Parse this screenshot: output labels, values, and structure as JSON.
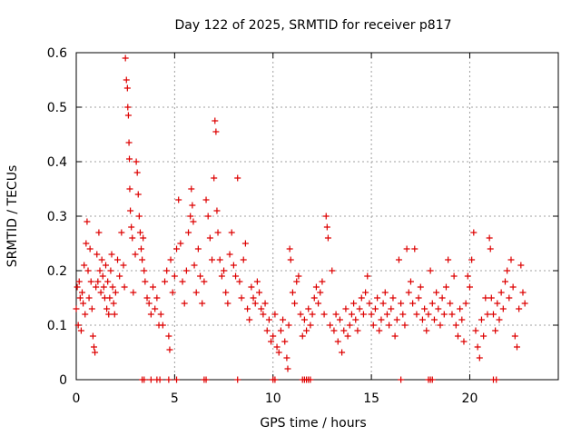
{
  "chart_data": {
    "type": "scatter",
    "title": "Day 122 of 2025, SRMTID for receiver p817",
    "xlabel": "GPS time / hours",
    "ylabel": "SRMTID / TECUs",
    "xlim": [
      0,
      24.5
    ],
    "ylim": [
      0,
      0.6
    ],
    "xticks": [
      "0",
      "5",
      "10",
      "15",
      "20"
    ],
    "xtick_values": [
      0,
      5,
      10,
      15,
      20
    ],
    "yticks": [
      "0",
      "0.1",
      "0.2",
      "0.3",
      "0.4",
      "0.5",
      "0.6"
    ],
    "ytick_values": [
      0,
      0.1,
      0.2,
      0.3,
      0.4,
      0.5,
      0.6
    ],
    "grid": true,
    "marker": "+",
    "color": "#dd0000",
    "series": [
      {
        "name": "p817",
        "points": [
          [
            0.0,
            0.13
          ],
          [
            0.05,
            0.17
          ],
          [
            0.1,
            0.1
          ],
          [
            0.15,
            0.18
          ],
          [
            0.2,
            0.15
          ],
          [
            0.25,
            0.09
          ],
          [
            0.3,
            0.16
          ],
          [
            0.35,
            0.14
          ],
          [
            0.4,
            0.21
          ],
          [
            0.45,
            0.12
          ],
          [
            0.5,
            0.25
          ],
          [
            0.55,
            0.29
          ],
          [
            0.6,
            0.2
          ],
          [
            0.65,
            0.15
          ],
          [
            0.7,
            0.24
          ],
          [
            0.75,
            0.18
          ],
          [
            0.8,
            0.13
          ],
          [
            0.85,
            0.08
          ],
          [
            0.9,
            0.06
          ],
          [
            0.95,
            0.05
          ],
          [
            1.0,
            0.17
          ],
          [
            1.05,
            0.23
          ],
          [
            1.1,
            0.18
          ],
          [
            1.15,
            0.27
          ],
          [
            1.2,
            0.2
          ],
          [
            1.25,
            0.16
          ],
          [
            1.3,
            0.22
          ],
          [
            1.35,
            0.19
          ],
          [
            1.4,
            0.17
          ],
          [
            1.45,
            0.15
          ],
          [
            1.5,
            0.21
          ],
          [
            1.55,
            0.13
          ],
          [
            1.6,
            0.18
          ],
          [
            1.65,
            0.12
          ],
          [
            1.7,
            0.15
          ],
          [
            1.75,
            0.2
          ],
          [
            1.8,
            0.23
          ],
          [
            1.85,
            0.17
          ],
          [
            1.9,
            0.14
          ],
          [
            1.95,
            0.12
          ],
          [
            2.0,
            0.16
          ],
          [
            2.1,
            0.22
          ],
          [
            2.2,
            0.19
          ],
          [
            2.3,
            0.27
          ],
          [
            2.4,
            0.21
          ],
          [
            2.45,
            0.17
          ],
          [
            2.5,
            0.59
          ],
          [
            2.55,
            0.55
          ],
          [
            2.6,
            0.535
          ],
          [
            2.62,
            0.5
          ],
          [
            2.65,
            0.485
          ],
          [
            2.68,
            0.435
          ],
          [
            2.7,
            0.405
          ],
          [
            2.72,
            0.35
          ],
          [
            2.75,
            0.31
          ],
          [
            2.8,
            0.28
          ],
          [
            2.85,
            0.26
          ],
          [
            2.9,
            0.16
          ],
          [
            3.0,
            0.23
          ],
          [
            3.05,
            0.4
          ],
          [
            3.1,
            0.38
          ],
          [
            3.15,
            0.34
          ],
          [
            3.2,
            0.3
          ],
          [
            3.25,
            0.27
          ],
          [
            3.3,
            0.24
          ],
          [
            3.35,
            0.22
          ],
          [
            3.4,
            0.26
          ],
          [
            3.45,
            0.2
          ],
          [
            3.5,
            0.18
          ],
          [
            3.6,
            0.15
          ],
          [
            3.7,
            0.14
          ],
          [
            3.8,
            0.12
          ],
          [
            3.9,
            0.17
          ],
          [
            4.0,
            0.13
          ],
          [
            4.1,
            0.15
          ],
          [
            4.2,
            0.1
          ],
          [
            4.3,
            0.12
          ],
          [
            4.4,
            0.1
          ],
          [
            4.5,
            0.18
          ],
          [
            4.6,
            0.2
          ],
          [
            4.7,
            0.08
          ],
          [
            4.75,
            0.055
          ],
          [
            4.8,
            0.22
          ],
          [
            4.9,
            0.16
          ],
          [
            5.0,
            0.19
          ],
          [
            5.1,
            0.24
          ],
          [
            5.2,
            0.33
          ],
          [
            5.3,
            0.25
          ],
          [
            5.4,
            0.18
          ],
          [
            5.5,
            0.14
          ],
          [
            5.6,
            0.2
          ],
          [
            5.7,
            0.27
          ],
          [
            5.8,
            0.3
          ],
          [
            5.85,
            0.35
          ],
          [
            5.9,
            0.32
          ],
          [
            5.95,
            0.29
          ],
          [
            6.0,
            0.21
          ],
          [
            6.1,
            0.16
          ],
          [
            6.2,
            0.24
          ],
          [
            6.3,
            0.19
          ],
          [
            6.4,
            0.14
          ],
          [
            6.5,
            0.18
          ],
          [
            6.6,
            0.33
          ],
          [
            6.7,
            0.3
          ],
          [
            6.8,
            0.26
          ],
          [
            6.9,
            0.22
          ],
          [
            7.0,
            0.37
          ],
          [
            7.05,
            0.475
          ],
          [
            7.1,
            0.455
          ],
          [
            7.15,
            0.31
          ],
          [
            7.2,
            0.27
          ],
          [
            7.3,
            0.22
          ],
          [
            7.4,
            0.19
          ],
          [
            7.5,
            0.2
          ],
          [
            7.6,
            0.16
          ],
          [
            7.7,
            0.14
          ],
          [
            7.8,
            0.23
          ],
          [
            7.9,
            0.27
          ],
          [
            8.0,
            0.21
          ],
          [
            8.1,
            0.19
          ],
          [
            8.2,
            0.37
          ],
          [
            8.3,
            0.18
          ],
          [
            8.4,
            0.15
          ],
          [
            8.5,
            0.22
          ],
          [
            8.6,
            0.25
          ],
          [
            8.7,
            0.13
          ],
          [
            8.8,
            0.11
          ],
          [
            8.9,
            0.17
          ],
          [
            9.0,
            0.15
          ],
          [
            9.1,
            0.14
          ],
          [
            9.2,
            0.18
          ],
          [
            9.3,
            0.16
          ],
          [
            9.4,
            0.13
          ],
          [
            9.5,
            0.12
          ],
          [
            9.6,
            0.14
          ],
          [
            9.7,
            0.09
          ],
          [
            9.8,
            0.11
          ],
          [
            9.9,
            0.07
          ],
          [
            10.0,
            0.08
          ],
          [
            10.1,
            0.12
          ],
          [
            10.2,
            0.06
          ],
          [
            10.3,
            0.05
          ],
          [
            10.4,
            0.09
          ],
          [
            10.5,
            0.11
          ],
          [
            10.6,
            0.07
          ],
          [
            10.7,
            0.04
          ],
          [
            10.75,
            0.02
          ],
          [
            10.8,
            0.1
          ],
          [
            10.85,
            0.24
          ],
          [
            10.9,
            0.22
          ],
          [
            11.0,
            0.16
          ],
          [
            11.1,
            0.14
          ],
          [
            11.2,
            0.18
          ],
          [
            11.3,
            0.19
          ],
          [
            11.4,
            0.12
          ],
          [
            11.5,
            0.08
          ],
          [
            11.6,
            0.11
          ],
          [
            11.7,
            0.09
          ],
          [
            11.8,
            0.13
          ],
          [
            11.9,
            0.1
          ],
          [
            12.0,
            0.12
          ],
          [
            12.1,
            0.15
          ],
          [
            12.2,
            0.17
          ],
          [
            12.3,
            0.14
          ],
          [
            12.4,
            0.16
          ],
          [
            12.5,
            0.18
          ],
          [
            12.6,
            0.12
          ],
          [
            12.7,
            0.3
          ],
          [
            12.75,
            0.28
          ],
          [
            12.8,
            0.26
          ],
          [
            12.9,
            0.1
          ],
          [
            13.0,
            0.2
          ],
          [
            13.1,
            0.09
          ],
          [
            13.2,
            0.12
          ],
          [
            13.3,
            0.07
          ],
          [
            13.4,
            0.11
          ],
          [
            13.5,
            0.05
          ],
          [
            13.6,
            0.09
          ],
          [
            13.7,
            0.13
          ],
          [
            13.8,
            0.08
          ],
          [
            13.9,
            0.1
          ],
          [
            14.0,
            0.12
          ],
          [
            14.1,
            0.14
          ],
          [
            14.2,
            0.11
          ],
          [
            14.3,
            0.09
          ],
          [
            14.4,
            0.13
          ],
          [
            14.5,
            0.15
          ],
          [
            14.6,
            0.12
          ],
          [
            14.7,
            0.16
          ],
          [
            14.8,
            0.19
          ],
          [
            14.9,
            0.14
          ],
          [
            15.0,
            0.12
          ],
          [
            15.1,
            0.1
          ],
          [
            15.2,
            0.13
          ],
          [
            15.3,
            0.15
          ],
          [
            15.4,
            0.09
          ],
          [
            15.5,
            0.11
          ],
          [
            15.6,
            0.14
          ],
          [
            15.7,
            0.16
          ],
          [
            15.8,
            0.12
          ],
          [
            15.9,
            0.1
          ],
          [
            16.0,
            0.13
          ],
          [
            16.1,
            0.15
          ],
          [
            16.2,
            0.08
          ],
          [
            16.3,
            0.11
          ],
          [
            16.4,
            0.22
          ],
          [
            16.5,
            0.14
          ],
          [
            16.6,
            0.12
          ],
          [
            16.7,
            0.1
          ],
          [
            16.8,
            0.24
          ],
          [
            16.9,
            0.16
          ],
          [
            17.0,
            0.18
          ],
          [
            17.1,
            0.14
          ],
          [
            17.2,
            0.24
          ],
          [
            17.3,
            0.12
          ],
          [
            17.4,
            0.15
          ],
          [
            17.5,
            0.17
          ],
          [
            17.6,
            0.11
          ],
          [
            17.7,
            0.13
          ],
          [
            17.8,
            0.09
          ],
          [
            17.9,
            0.12
          ],
          [
            18.0,
            0.2
          ],
          [
            18.1,
            0.14
          ],
          [
            18.2,
            0.11
          ],
          [
            18.3,
            0.16
          ],
          [
            18.4,
            0.13
          ],
          [
            18.5,
            0.1
          ],
          [
            18.6,
            0.15
          ],
          [
            18.7,
            0.12
          ],
          [
            18.8,
            0.17
          ],
          [
            18.9,
            0.22
          ],
          [
            19.0,
            0.14
          ],
          [
            19.1,
            0.12
          ],
          [
            19.2,
            0.19
          ],
          [
            19.3,
            0.1
          ],
          [
            19.4,
            0.08
          ],
          [
            19.5,
            0.13
          ],
          [
            19.6,
            0.11
          ],
          [
            19.7,
            0.07
          ],
          [
            19.8,
            0.14
          ],
          [
            19.9,
            0.19
          ],
          [
            20.0,
            0.17
          ],
          [
            20.1,
            0.22
          ],
          [
            20.2,
            0.27
          ],
          [
            20.3,
            0.09
          ],
          [
            20.4,
            0.06
          ],
          [
            20.5,
            0.04
          ],
          [
            20.6,
            0.11
          ],
          [
            20.7,
            0.08
          ],
          [
            20.8,
            0.15
          ],
          [
            20.9,
            0.12
          ],
          [
            21.0,
            0.26
          ],
          [
            21.05,
            0.24
          ],
          [
            21.1,
            0.15
          ],
          [
            21.2,
            0.12
          ],
          [
            21.3,
            0.09
          ],
          [
            21.4,
            0.14
          ],
          [
            21.5,
            0.11
          ],
          [
            21.6,
            0.16
          ],
          [
            21.7,
            0.13
          ],
          [
            21.8,
            0.18
          ],
          [
            21.9,
            0.2
          ],
          [
            22.0,
            0.15
          ],
          [
            22.1,
            0.22
          ],
          [
            22.2,
            0.17
          ],
          [
            22.3,
            0.08
          ],
          [
            22.4,
            0.06
          ],
          [
            22.5,
            0.13
          ],
          [
            22.6,
            0.21
          ],
          [
            22.7,
            0.16
          ],
          [
            22.8,
            0.14
          ]
        ]
      },
      {
        "name": "zero-values",
        "points": [
          [
            3.35,
            0
          ],
          [
            3.45,
            0
          ],
          [
            3.8,
            0
          ],
          [
            4.1,
            0
          ],
          [
            4.25,
            0
          ],
          [
            4.7,
            0
          ],
          [
            5.1,
            0
          ],
          [
            6.5,
            0
          ],
          [
            6.6,
            0
          ],
          [
            8.2,
            0
          ],
          [
            10.0,
            0
          ],
          [
            10.1,
            0
          ],
          [
            11.5,
            0
          ],
          [
            11.6,
            0
          ],
          [
            11.7,
            0
          ],
          [
            11.8,
            0
          ],
          [
            11.9,
            0
          ],
          [
            16.5,
            0
          ],
          [
            17.9,
            0
          ],
          [
            18.0,
            0
          ],
          [
            18.1,
            0
          ],
          [
            21.2,
            0
          ],
          [
            21.35,
            0
          ]
        ]
      }
    ]
  }
}
